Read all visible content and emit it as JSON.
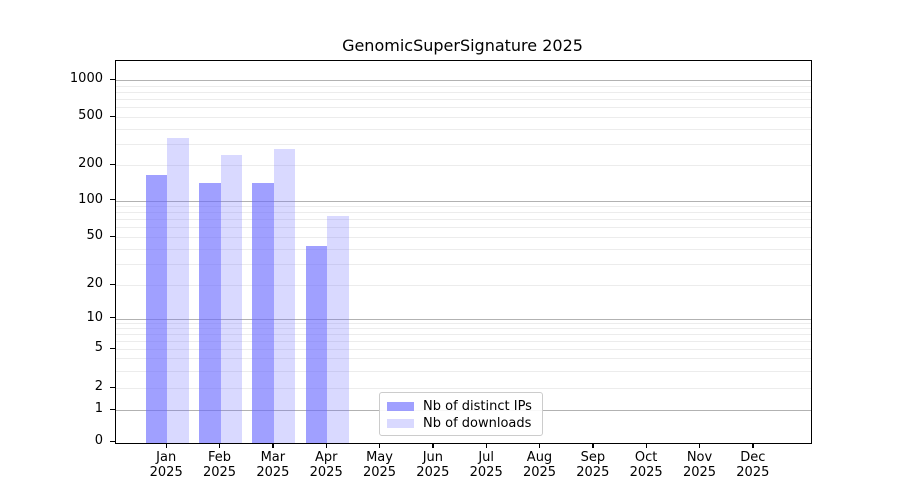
{
  "title": "GenomicSuperSignature 2025",
  "chart_data": {
    "type": "bar",
    "title": "GenomicSuperSignature 2025",
    "categories": [
      "Jan",
      "Feb",
      "Mar",
      "Apr",
      "May",
      "Jun",
      "Jul",
      "Aug",
      "Sep",
      "Oct",
      "Nov",
      "Dec"
    ],
    "year_label": "2025",
    "series": [
      {
        "name": "Nb of distinct IPs",
        "color": "rgba(102,102,255,0.62)",
        "values": [
          165,
          140,
          140,
          42,
          null,
          null,
          null,
          null,
          null,
          null,
          null,
          null
        ]
      },
      {
        "name": "Nb of downloads",
        "color": "rgba(102,102,255,0.25)",
        "values": [
          335,
          240,
          270,
          75,
          null,
          null,
          null,
          null,
          null,
          null,
          null,
          null
        ]
      }
    ],
    "y_ticks": [
      0,
      1,
      2,
      5,
      10,
      20,
      50,
      100,
      200,
      500,
      1000
    ],
    "y_minor_gridlines": [
      2,
      3,
      4,
      5,
      6,
      7,
      8,
      9,
      20,
      30,
      40,
      50,
      60,
      70,
      80,
      90,
      200,
      300,
      400,
      500,
      600,
      700,
      800,
      900
    ],
    "y_major_gridlines": [
      1,
      10,
      100,
      1000
    ],
    "ylim": [
      0,
      1433
    ],
    "yscale": "pseudo-log",
    "grid": true,
    "legend_position": "bottom-center-inside"
  },
  "colors": {
    "accent_base": "#6666ff",
    "bar_distinct_ips": "#a6a6f4",
    "bar_downloads": "#d9d9fa",
    "grid_major": "#b3b3b3",
    "grid_minor": "#ececec",
    "axis": "#000000",
    "legend_border": "#cccccc"
  }
}
